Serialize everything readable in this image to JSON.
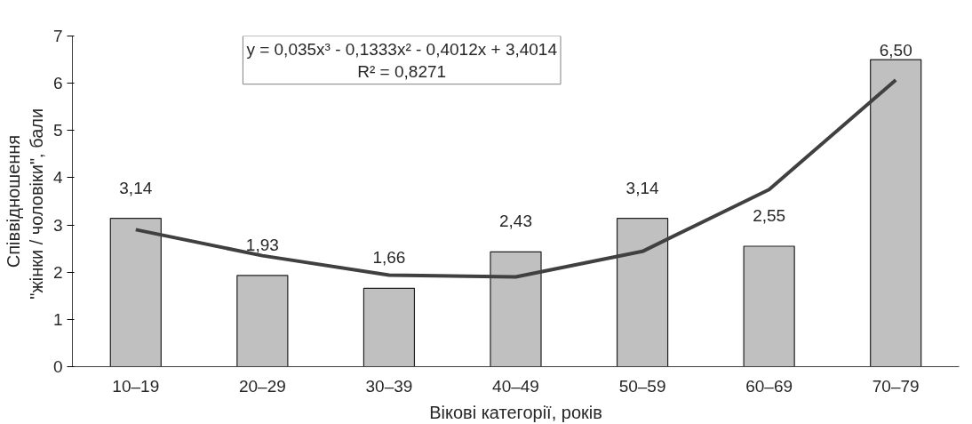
{
  "chart_data": {
    "type": "bar",
    "xlabel": "Вікові категорії, років",
    "ylabel": "Співвідношення\n\"жінки / чоловіки\",  бали",
    "categories": [
      "10–19",
      "20–29",
      "30–39",
      "40–49",
      "50–59",
      "60–69",
      "70–79"
    ],
    "series": [
      {
        "color": "#c0c0c0",
        "values": [
          3.14,
          1.93,
          1.66,
          2.43,
          3.14,
          2.55,
          6.5
        ],
        "value_labels": [
          "3,14",
          "1,93",
          "1,66",
          "2,43",
          "3,14",
          "2,55",
          "6,50"
        ]
      },
      {
        "type": "line",
        "color": "#404040",
        "values": [
          2.9,
          2.35,
          1.94,
          1.9,
          2.44,
          3.75,
          6.07
        ]
      }
    ],
    "ylim": [
      0,
      7
    ],
    "yticks": [
      0,
      1,
      2,
      3,
      4,
      5,
      6,
      7
    ],
    "grid": false,
    "annotations": [
      "y = 0,035x³ - 0,1333x² - 0,4012x + 3,4014",
      "R² = 0,8271"
    ]
  }
}
